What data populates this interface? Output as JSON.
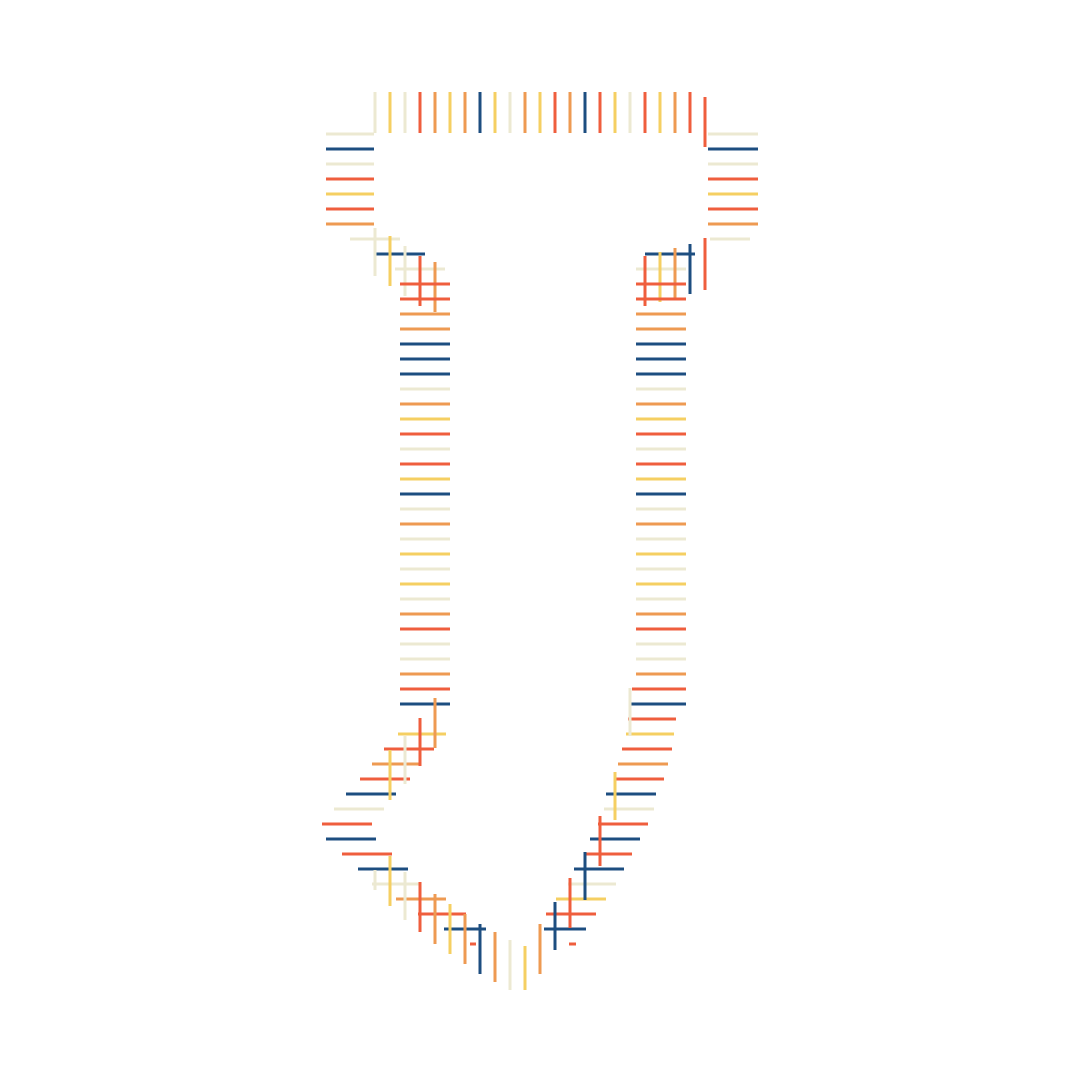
{
  "artwork": {
    "subject": "hatched-arrow-glyph",
    "palette": {
      "navy": "#1d4e80",
      "red": "#ef5e3d",
      "orange": "#ee9a52",
      "yellow": "#f5cf62",
      "cream": "#ece9d2"
    },
    "background": "#ffffff"
  }
}
